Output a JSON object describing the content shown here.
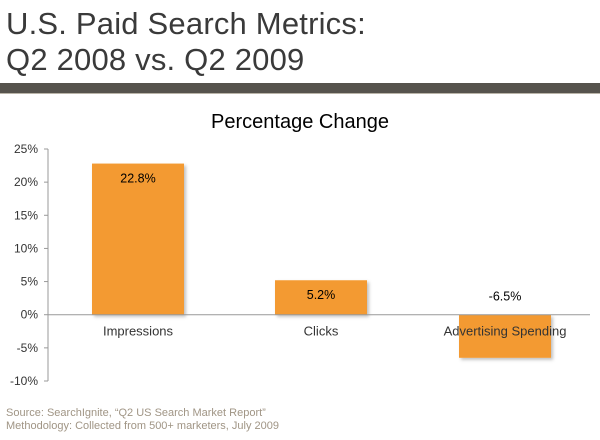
{
  "slide": {
    "title_line1": "U.S. Paid Search Metrics:",
    "title_line2": "Q2 2008 vs. Q2 2009"
  },
  "footer": {
    "source": "Source: SearchIgnite, “Q2 US Search Market Report”",
    "methodology": "Methodology:  Collected from 500+ marketers, July 2009"
  },
  "colors": {
    "bar": "#f39a30",
    "axis": "#999999"
  },
  "chart_data": {
    "type": "bar",
    "title": "Percentage Change",
    "xlabel": "",
    "ylabel": "",
    "categories": [
      "Impressions",
      "Clicks",
      "Advertising Spending"
    ],
    "values": [
      22.8,
      5.2,
      -6.5
    ],
    "data_labels": [
      "22.8%",
      "5.2%",
      "-6.5%"
    ],
    "ylim": [
      -10,
      25
    ],
    "yticks": [
      25,
      20,
      15,
      10,
      5,
      0,
      -5,
      -10
    ],
    "ytick_labels": [
      "25%",
      "20%",
      "15%",
      "10%",
      "5%",
      "0%",
      "-5%",
      "-10%"
    ],
    "grid": false,
    "legend": "none"
  }
}
